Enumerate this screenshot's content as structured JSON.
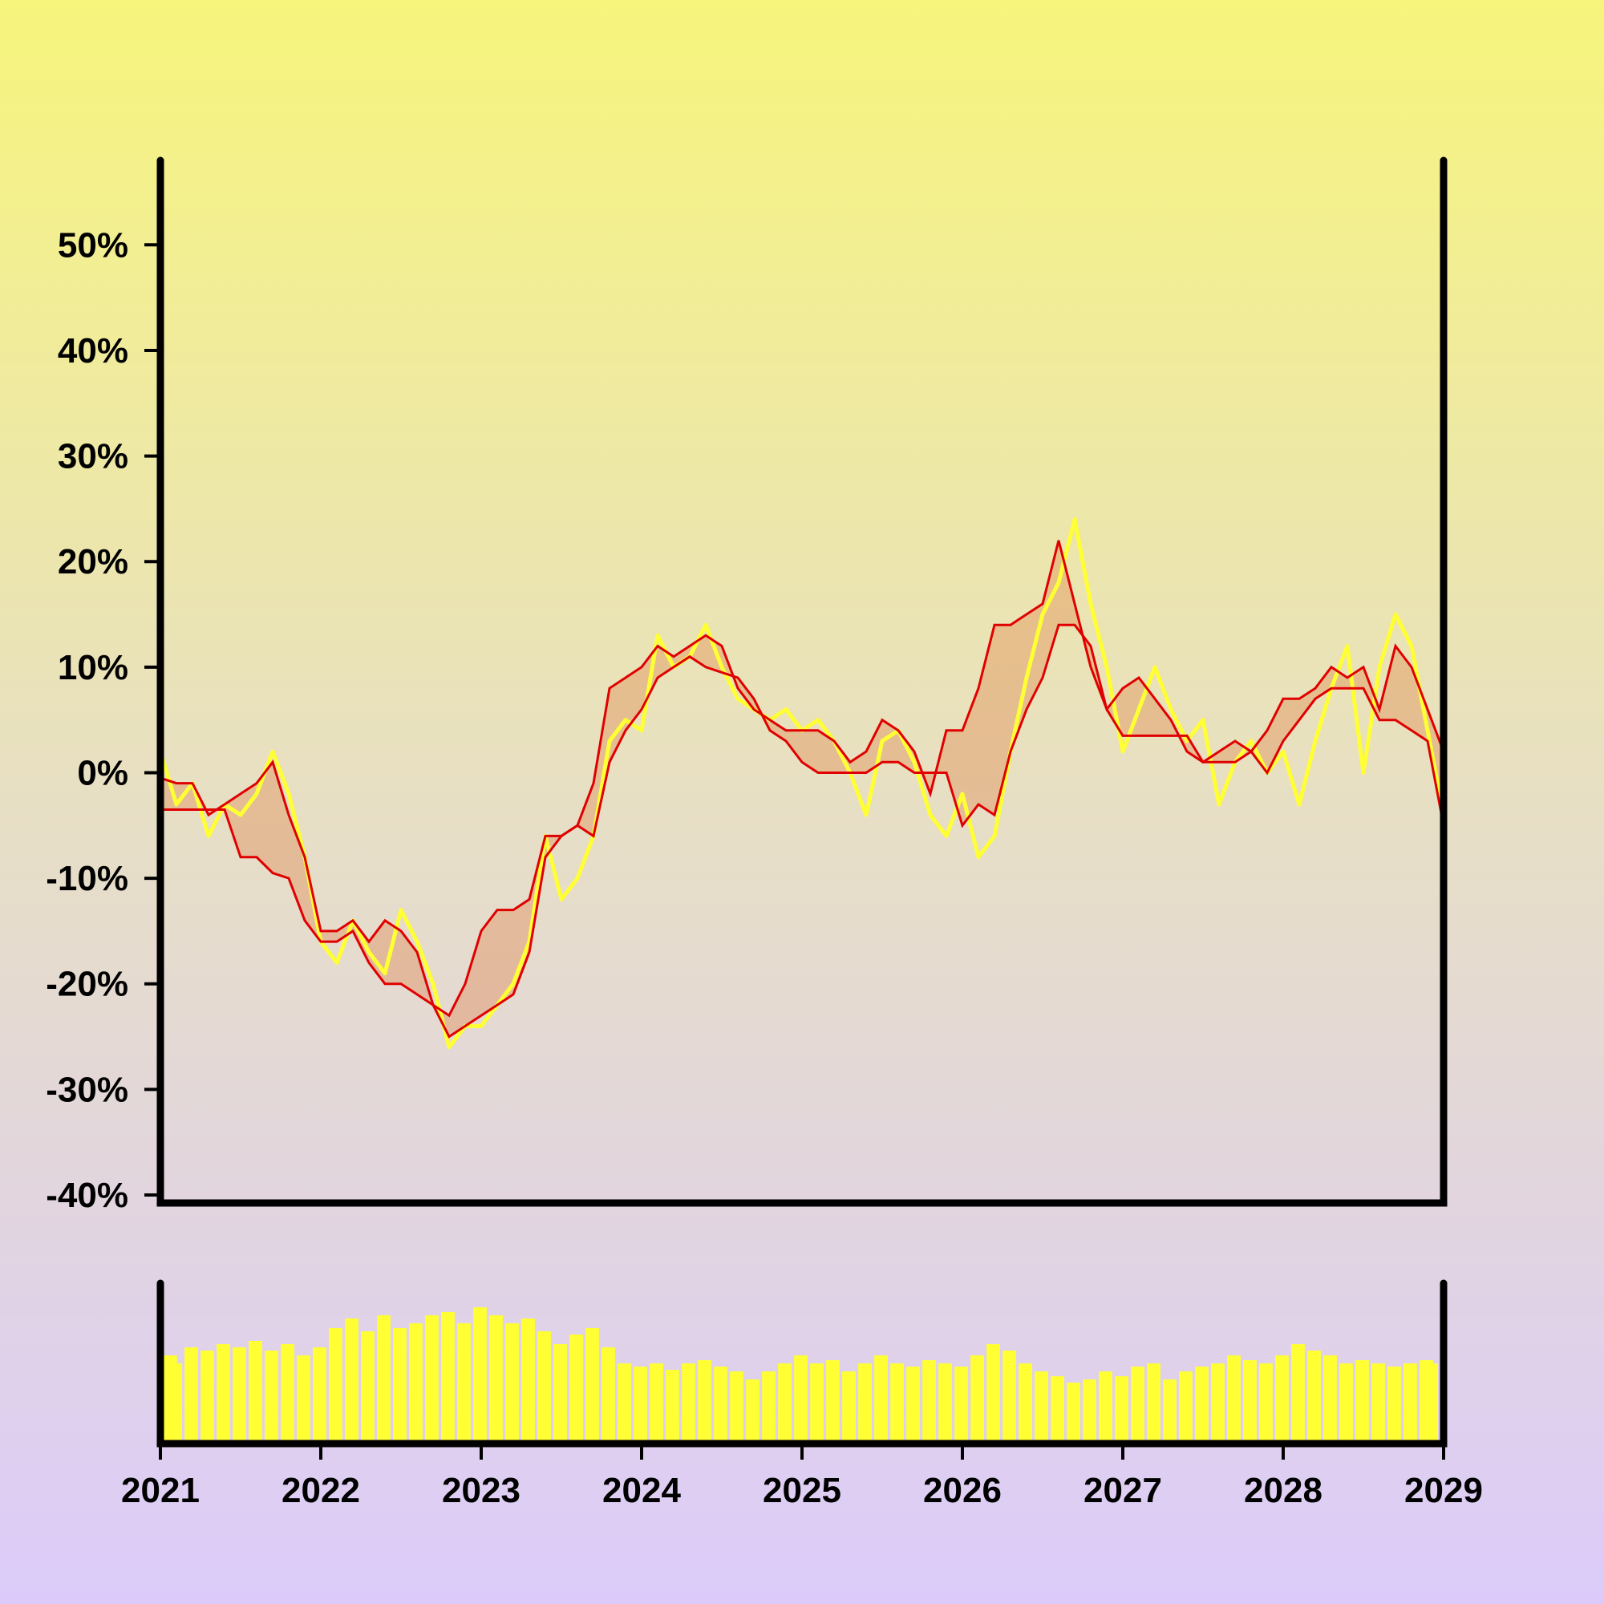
{
  "chart_data": {
    "type": "line",
    "title": "",
    "xlabel": "",
    "ylabel": "",
    "x_range": [
      "2021-01-01",
      "2029-01-01"
    ],
    "ylim": [
      -40,
      58
    ],
    "grid": false,
    "legend": "none",
    "y_ticks": [
      {
        "value": 50,
        "label": "50%"
      },
      {
        "value": 40,
        "label": "40%"
      },
      {
        "value": 30,
        "label": "30%"
      },
      {
        "value": 20,
        "label": "20%"
      },
      {
        "value": 10,
        "label": "10%"
      },
      {
        "value": 0,
        "label": "0%"
      },
      {
        "value": -10,
        "label": "-10%"
      },
      {
        "value": -20,
        "label": "-20%"
      },
      {
        "value": -30,
        "label": "-30%"
      },
      {
        "value": -40,
        "label": "-40%"
      }
    ],
    "x_ticks": [
      {
        "value": 2021,
        "label": "2021"
      },
      {
        "value": 2022,
        "label": "2022"
      },
      {
        "value": 2023,
        "label": "2023"
      },
      {
        "value": 2024,
        "label": "2024"
      },
      {
        "value": 2025,
        "label": "2025"
      },
      {
        "value": 2026,
        "label": "2026"
      },
      {
        "value": 2027,
        "label": "2027"
      },
      {
        "value": 2028,
        "label": "2028"
      },
      {
        "value": 2029,
        "label": "2029"
      }
    ],
    "series": [
      {
        "role": "price",
        "color": "#ffff33",
        "x": [
          2021.0,
          2021.1,
          2021.2,
          2021.3,
          2021.4,
          2021.5,
          2021.6,
          2021.7,
          2021.8,
          2021.9,
          2022.0,
          2022.1,
          2022.2,
          2022.3,
          2022.4,
          2022.5,
          2022.6,
          2022.7,
          2022.8,
          2022.9,
          2023.0,
          2023.1,
          2023.2,
          2023.3,
          2023.4,
          2023.5,
          2023.6,
          2023.7,
          2023.8,
          2023.9,
          2024.0,
          2024.1,
          2024.2,
          2024.3,
          2024.4,
          2024.5,
          2024.6,
          2024.7,
          2024.8,
          2024.9,
          2025.0,
          2025.1,
          2025.2,
          2025.3,
          2025.4,
          2025.5,
          2025.6,
          2025.7,
          2025.8,
          2025.9,
          2026.0,
          2026.1,
          2026.2,
          2026.3,
          2026.4,
          2026.5,
          2026.6,
          2026.7,
          2026.8,
          2026.9,
          2027.0,
          2027.1,
          2027.2,
          2027.3,
          2027.4,
          2027.5,
          2027.6,
          2027.7,
          2027.8,
          2027.9,
          2028.0,
          2028.1,
          2028.2,
          2028.3,
          2028.4,
          2028.5,
          2028.6,
          2028.7,
          2028.8,
          2028.9,
          2029.0
        ],
        "values": [
          2,
          -3,
          -1,
          -6,
          -3,
          -4,
          -2,
          2,
          -2,
          -8,
          -16,
          -18,
          -14,
          -17,
          -19,
          -13,
          -16,
          -20,
          -26,
          -24,
          -24,
          -22,
          -20,
          -16,
          -6,
          -12,
          -10,
          -6,
          3,
          5,
          4,
          13,
          10,
          11,
          14,
          10,
          7,
          6,
          5,
          6,
          4,
          5,
          3,
          0,
          -4,
          3,
          4,
          1,
          -4,
          -6,
          -2,
          -8,
          -6,
          2,
          9,
          15,
          18,
          24,
          16,
          10,
          2,
          6,
          10,
          6,
          3,
          5,
          -3,
          1,
          3,
          0,
          2,
          -3,
          3,
          8,
          12,
          0,
          10,
          15,
          12,
          4,
          -4
        ]
      },
      {
        "role": "upper-band",
        "color": "#e00000",
        "x": [
          2021.0,
          2021.1,
          2021.2,
          2021.3,
          2021.4,
          2021.5,
          2021.6,
          2021.7,
          2021.8,
          2021.9,
          2022.0,
          2022.1,
          2022.2,
          2022.3,
          2022.4,
          2022.5,
          2022.6,
          2022.7,
          2022.8,
          2022.9,
          2023.0,
          2023.1,
          2023.2,
          2023.3,
          2023.4,
          2023.5,
          2023.6,
          2023.7,
          2023.8,
          2023.9,
          2024.0,
          2024.1,
          2024.2,
          2024.3,
          2024.4,
          2024.5,
          2024.6,
          2024.7,
          2024.8,
          2024.9,
          2025.0,
          2025.1,
          2025.2,
          2025.3,
          2025.4,
          2025.5,
          2025.6,
          2025.7,
          2025.8,
          2025.9,
          2026.0,
          2026.1,
          2026.2,
          2026.3,
          2026.4,
          2026.5,
          2026.6,
          2026.7,
          2026.8,
          2026.9,
          2027.0,
          2027.1,
          2027.2,
          2027.3,
          2027.4,
          2027.5,
          2027.6,
          2027.7,
          2027.8,
          2027.9,
          2028.0,
          2028.1,
          2028.2,
          2028.3,
          2028.4,
          2028.5,
          2028.6,
          2028.7,
          2028.8,
          2028.9,
          2029.0
        ],
        "values": [
          -0.5,
          -1,
          -1,
          -4,
          -3,
          -2,
          -1,
          1,
          -4,
          -8,
          -15,
          -15,
          -14,
          -16,
          -14,
          -15,
          -17,
          -22,
          -23,
          -20,
          -15,
          -13,
          -13,
          -12,
          -6,
          -6,
          -5,
          -1,
          8,
          9,
          10,
          12,
          11,
          12,
          13,
          12,
          8,
          6,
          5,
          4,
          4,
          4,
          3,
          1,
          2,
          5,
          4,
          2,
          -2,
          4,
          4,
          8,
          14,
          14,
          15,
          16,
          22,
          16,
          10,
          6,
          8,
          9,
          7,
          5,
          2,
          1,
          2,
          3,
          2,
          4,
          7,
          7,
          8,
          10,
          9,
          10,
          6,
          12,
          10,
          6,
          2
        ]
      },
      {
        "role": "lower-band",
        "color": "#e00000",
        "x": [
          2021.0,
          2021.1,
          2021.2,
          2021.3,
          2021.4,
          2021.5,
          2021.6,
          2021.7,
          2021.8,
          2021.9,
          2022.0,
          2022.1,
          2022.2,
          2022.3,
          2022.4,
          2022.5,
          2022.6,
          2022.7,
          2022.8,
          2022.9,
          2023.0,
          2023.1,
          2023.2,
          2023.3,
          2023.4,
          2023.5,
          2023.6,
          2023.7,
          2023.8,
          2023.9,
          2024.0,
          2024.1,
          2024.2,
          2024.3,
          2024.4,
          2024.5,
          2024.6,
          2024.7,
          2024.8,
          2024.9,
          2025.0,
          2025.1,
          2025.2,
          2025.3,
          2025.4,
          2025.5,
          2025.6,
          2025.7,
          2025.8,
          2025.9,
          2026.0,
          2026.1,
          2026.2,
          2026.3,
          2026.4,
          2026.5,
          2026.6,
          2026.7,
          2026.8,
          2026.9,
          2027.0,
          2027.1,
          2027.2,
          2027.3,
          2027.4,
          2027.5,
          2027.6,
          2027.7,
          2027.8,
          2027.9,
          2028.0,
          2028.1,
          2028.2,
          2028.3,
          2028.4,
          2028.5,
          2028.6,
          2028.7,
          2028.8,
          2028.9,
          2029.0
        ],
        "values": [
          -3.5,
          -3.5,
          -3.5,
          -3.5,
          -3.5,
          -8,
          -8,
          -9.5,
          -10,
          -14,
          -16,
          -16,
          -15,
          -18,
          -20,
          -20,
          -21,
          -22,
          -25,
          -24,
          -23,
          -22,
          -21,
          -17,
          -8,
          -6,
          -5,
          -6,
          1,
          4,
          6,
          9,
          10,
          11,
          10,
          9.5,
          9,
          7,
          4,
          3,
          1,
          0,
          0,
          0,
          0,
          1,
          1,
          0,
          0,
          0,
          -5,
          -3,
          -4,
          2,
          6,
          9,
          14,
          14,
          12,
          6,
          3.5,
          3.5,
          3.5,
          3.5,
          3.5,
          1,
          1,
          1,
          2,
          0,
          3,
          5,
          7,
          8,
          8,
          8,
          5,
          5,
          4,
          3,
          -5
        ]
      }
    ],
    "volume": {
      "color": "#ffff33",
      "x": [
        2021.0,
        2021.1,
        2021.2,
        2021.3,
        2021.4,
        2021.5,
        2021.6,
        2021.7,
        2021.8,
        2021.9,
        2022.0,
        2022.1,
        2022.2,
        2022.3,
        2022.4,
        2022.5,
        2022.6,
        2022.7,
        2022.8,
        2022.9,
        2023.0,
        2023.1,
        2023.2,
        2023.3,
        2023.4,
        2023.5,
        2023.6,
        2023.7,
        2023.8,
        2023.9,
        2024.0,
        2024.1,
        2024.2,
        2024.3,
        2024.4,
        2024.5,
        2024.6,
        2024.7,
        2024.8,
        2024.9,
        2025.0,
        2025.1,
        2025.2,
        2025.3,
        2025.4,
        2025.5,
        2025.6,
        2025.7,
        2025.8,
        2025.9,
        2026.0,
        2026.1,
        2026.2,
        2026.3,
        2026.4,
        2026.5,
        2026.6,
        2026.7,
        2026.8,
        2026.9,
        2027.0,
        2027.1,
        2027.2,
        2027.3,
        2027.4,
        2027.5,
        2027.6,
        2027.7,
        2027.8,
        2027.9,
        2028.0,
        2028.1,
        2028.2,
        2028.3,
        2028.4,
        2028.5,
        2028.6,
        2028.7,
        2028.8,
        2028.9,
        2029.0
      ],
      "values": [
        0.55,
        0.5,
        0.6,
        0.58,
        0.62,
        0.6,
        0.64,
        0.58,
        0.62,
        0.55,
        0.6,
        0.72,
        0.78,
        0.7,
        0.8,
        0.72,
        0.75,
        0.8,
        0.82,
        0.75,
        0.85,
        0.8,
        0.75,
        0.78,
        0.7,
        0.62,
        0.68,
        0.72,
        0.6,
        0.5,
        0.48,
        0.5,
        0.46,
        0.5,
        0.52,
        0.48,
        0.45,
        0.4,
        0.45,
        0.5,
        0.55,
        0.5,
        0.52,
        0.45,
        0.5,
        0.55,
        0.5,
        0.48,
        0.52,
        0.5,
        0.48,
        0.55,
        0.62,
        0.58,
        0.5,
        0.45,
        0.42,
        0.38,
        0.4,
        0.45,
        0.42,
        0.48,
        0.5,
        0.4,
        0.45,
        0.48,
        0.5,
        0.55,
        0.52,
        0.5,
        0.55,
        0.62,
        0.58,
        0.55,
        0.5,
        0.52,
        0.5,
        0.48,
        0.5,
        0.52,
        0.5
      ]
    }
  }
}
